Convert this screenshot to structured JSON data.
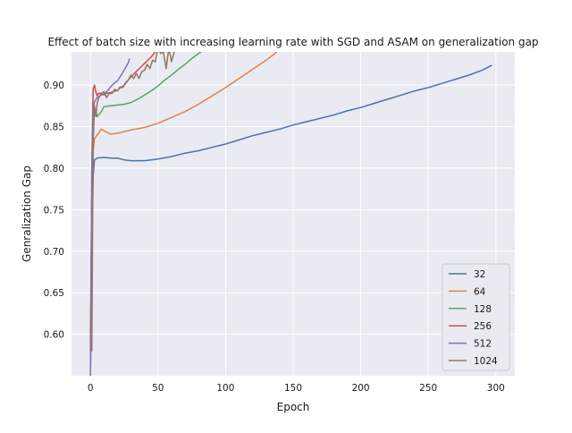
{
  "chart_data": {
    "type": "line",
    "title": "Effect of batch size with increasing learning rate with SGD and ASAM on generalization gap",
    "xlabel": "Epoch",
    "ylabel": "Genralization Gap",
    "xlim": [
      -14,
      314
    ],
    "ylim": [
      0.55,
      0.94
    ],
    "xticks": [
      0,
      50,
      100,
      150,
      200,
      250,
      300
    ],
    "yticks": [
      0.6,
      0.65,
      0.7,
      0.75,
      0.8,
      0.85,
      0.9
    ],
    "grid": true,
    "legend_position": "lower right",
    "series": [
      {
        "name": "32",
        "color": "#4c72b0",
        "x": [
          0,
          1,
          2,
          3,
          5,
          10,
          15,
          20,
          25,
          30,
          35,
          40,
          45,
          50,
          60,
          70,
          80,
          90,
          100,
          110,
          120,
          130,
          140,
          150,
          160,
          170,
          180,
          190,
          200,
          210,
          220,
          230,
          240,
          250,
          260,
          270,
          280,
          290,
          297
        ],
        "y": [
          0.55,
          0.7,
          0.79,
          0.81,
          0.812,
          0.813,
          0.812,
          0.812,
          0.81,
          0.809,
          0.809,
          0.809,
          0.81,
          0.811,
          0.814,
          0.818,
          0.821,
          0.825,
          0.829,
          0.834,
          0.839,
          0.843,
          0.847,
          0.852,
          0.856,
          0.86,
          0.864,
          0.869,
          0.873,
          0.878,
          0.883,
          0.888,
          0.893,
          0.897,
          0.902,
          0.907,
          0.912,
          0.918,
          0.924
        ]
      },
      {
        "name": "64",
        "color": "#dd8452",
        "x": [
          0,
          1,
          2,
          3,
          5,
          8,
          10,
          15,
          20,
          30,
          40,
          50,
          60,
          70,
          80,
          90,
          100,
          110,
          120,
          130,
          138
        ],
        "y": [
          0.58,
          0.7,
          0.82,
          0.835,
          0.84,
          0.847,
          0.845,
          0.841,
          0.842,
          0.846,
          0.849,
          0.854,
          0.861,
          0.868,
          0.877,
          0.887,
          0.897,
          0.908,
          0.919,
          0.93,
          0.94
        ]
      },
      {
        "name": "128",
        "color": "#55a868",
        "x": [
          0,
          1,
          2,
          3,
          4,
          5,
          8,
          10,
          15,
          20,
          25,
          30,
          35,
          40,
          45,
          50,
          55,
          60,
          65,
          70,
          75,
          80,
          82
        ],
        "y": [
          0.58,
          0.75,
          0.85,
          0.868,
          0.87,
          0.862,
          0.868,
          0.874,
          0.875,
          0.876,
          0.877,
          0.879,
          0.883,
          0.888,
          0.893,
          0.899,
          0.906,
          0.912,
          0.919,
          0.925,
          0.932,
          0.938,
          0.94
        ]
      },
      {
        "name": "256",
        "color": "#c44e52",
        "x": [
          0,
          1,
          2,
          3,
          4,
          5,
          6,
          8,
          10,
          12,
          15,
          20,
          25,
          30,
          35,
          40,
          45,
          48
        ],
        "y": [
          0.58,
          0.8,
          0.895,
          0.9,
          0.892,
          0.887,
          0.89,
          0.89,
          0.888,
          0.89,
          0.891,
          0.894,
          0.9,
          0.91,
          0.918,
          0.926,
          0.934,
          0.94
        ]
      },
      {
        "name": "512",
        "color": "#8172b3",
        "x": [
          0,
          1,
          2,
          3,
          5,
          8,
          10,
          12,
          15,
          18,
          20,
          22,
          25,
          28,
          29
        ],
        "y": [
          0.55,
          0.8,
          0.87,
          0.88,
          0.885,
          0.888,
          0.89,
          0.892,
          0.898,
          0.903,
          0.905,
          0.91,
          0.918,
          0.927,
          0.932
        ]
      },
      {
        "name": "1024",
        "color": "#937860",
        "x": [
          0,
          1,
          2,
          3,
          4,
          5,
          6,
          8,
          10,
          12,
          14,
          16,
          18,
          20,
          22,
          24,
          26,
          28,
          30,
          32,
          34,
          36,
          38,
          40,
          42,
          44,
          46,
          48,
          50,
          52,
          54,
          56,
          58,
          60,
          62
        ],
        "y": [
          0.58,
          0.58,
          0.83,
          0.875,
          0.862,
          0.878,
          0.884,
          0.89,
          0.892,
          0.885,
          0.89,
          0.89,
          0.895,
          0.893,
          0.898,
          0.897,
          0.903,
          0.906,
          0.912,
          0.908,
          0.914,
          0.908,
          0.916,
          0.918,
          0.925,
          0.92,
          0.93,
          0.928,
          0.945,
          0.938,
          0.94,
          0.92,
          0.945,
          0.928,
          0.94
        ]
      }
    ]
  }
}
